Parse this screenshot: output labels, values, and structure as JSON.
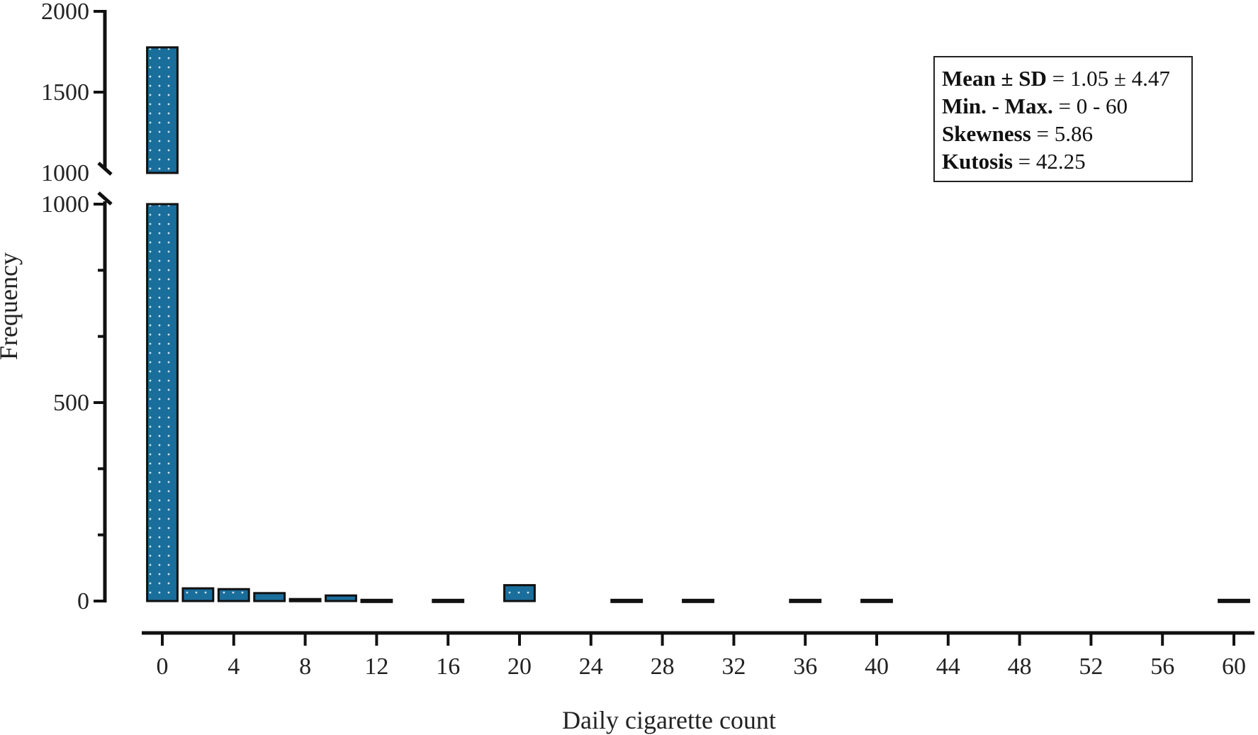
{
  "chart_data": {
    "type": "bar",
    "xlabel": "Daily cigarette count",
    "ylabel": "Frequency",
    "x_ticks": [
      "0",
      "4",
      "8",
      "12",
      "16",
      "20",
      "24",
      "28",
      "32",
      "36",
      "40",
      "44",
      "48",
      "52",
      "56",
      "60"
    ],
    "y_ticks_lower": [
      "0",
      "500",
      "1000"
    ],
    "y_ticks_upper": [
      "1000",
      "1500",
      "2000"
    ],
    "y_axis_break": [
      1000,
      1000
    ],
    "xlim": [
      0,
      60
    ],
    "ylim_lower": [
      0,
      1000
    ],
    "ylim_upper": [
      1000,
      2000
    ],
    "grid": false,
    "bars": [
      {
        "x": 0,
        "value": 1777
      },
      {
        "x": 2,
        "value": 32
      },
      {
        "x": 4,
        "value": 30
      },
      {
        "x": 6,
        "value": 20
      },
      {
        "x": 8,
        "value": 5
      },
      {
        "x": 10,
        "value": 14
      },
      {
        "x": 12,
        "value": 3
      },
      {
        "x": 16,
        "value": 3
      },
      {
        "x": 20,
        "value": 40
      },
      {
        "x": 26,
        "value": 3
      },
      {
        "x": 30,
        "value": 3
      },
      {
        "x": 36,
        "value": 3
      },
      {
        "x": 40,
        "value": 3
      },
      {
        "x": 60,
        "value": 3
      }
    ],
    "bar_color": "#1a6e9c",
    "annotation": {
      "position": "top-right",
      "lines": [
        {
          "label": "Mean ± SD",
          "value": "1.05 ± 4.47"
        },
        {
          "label": "Min. - Max.",
          "value": "0 - 60"
        },
        {
          "label": "Skewness",
          "value": "5.86"
        },
        {
          "label": "Kutosis",
          "value": "42.25"
        }
      ]
    }
  }
}
